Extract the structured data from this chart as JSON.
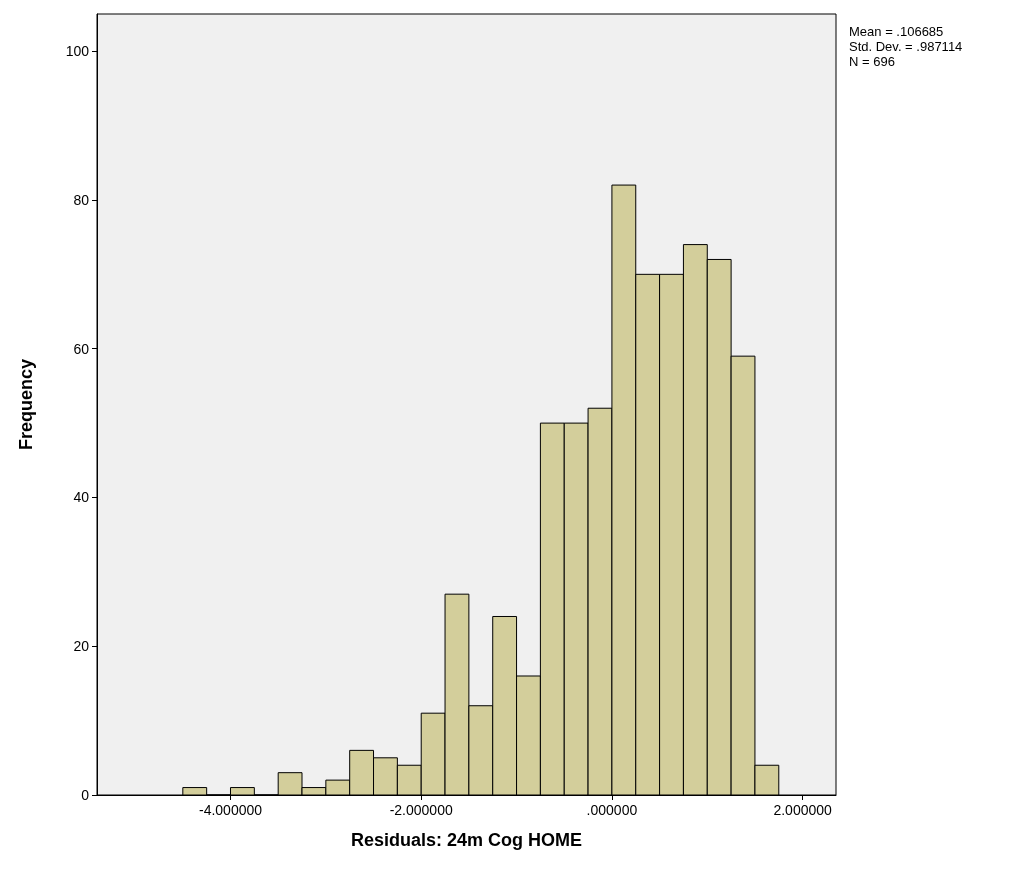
{
  "chart_data": {
    "type": "histogram",
    "xlabel": "Residuals: 24m Cog HOME",
    "ylabel": "Frequency",
    "annotations": [
      "Mean = .106685",
      "Std. Dev. = .987114",
      "N = 696"
    ],
    "bins": [
      -4.5,
      -4.25,
      -4.0,
      -3.75,
      -3.5,
      -3.25,
      -3.0,
      -2.75,
      -2.5,
      -2.25,
      -2.0,
      -1.75,
      -1.5,
      -1.25,
      -1.0,
      -0.75,
      -0.5,
      -0.25,
      0,
      0.25,
      0.5,
      0.75,
      1.0,
      1.25,
      1.5,
      1.75
    ],
    "values": [
      1,
      0,
      1,
      0,
      3,
      1,
      2,
      6,
      5,
      4,
      11,
      27,
      12,
      24,
      16,
      50,
      50,
      52,
      82,
      70,
      70,
      74,
      72,
      59,
      4
    ],
    "color": "#d3ce9b",
    "xlim": [
      -5.4,
      2.35
    ],
    "xticks": [
      {
        "value": -4,
        "label": "-4.000000"
      },
      {
        "value": -2,
        "label": "-2.000000"
      },
      {
        "value": 0,
        "label": ".000000"
      },
      {
        "value": 2,
        "label": "2.000000"
      }
    ],
    "ylim": [
      0,
      105
    ],
    "yticks": [
      0,
      20,
      40,
      60,
      80,
      100
    ],
    "grid": false
  }
}
